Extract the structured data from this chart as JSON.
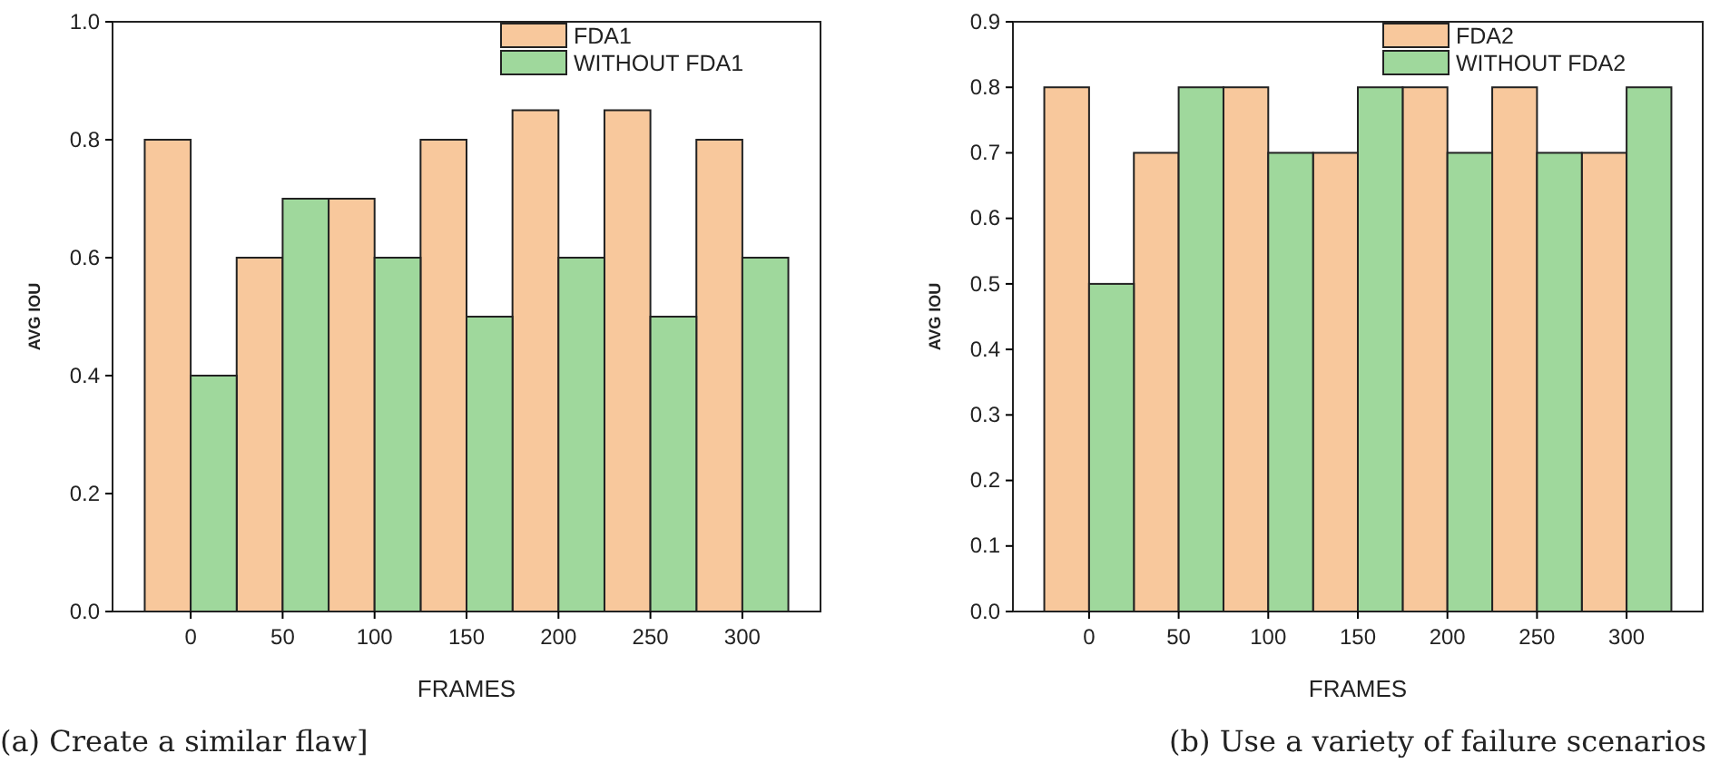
{
  "chart_data": [
    {
      "type": "bar",
      "xlabel": "FRAMES",
      "ylabel": "AVG IOU",
      "categories": [
        "0",
        "50",
        "100",
        "150",
        "200",
        "250",
        "300"
      ],
      "series": [
        {
          "name": "FDA1",
          "color": "#f8c89c",
          "values": [
            0.8,
            0.6,
            0.7,
            0.8,
            0.85,
            0.85,
            0.8
          ]
        },
        {
          "name": "WITHOUT FDA1",
          "color": "#9fd89c",
          "values": [
            0.4,
            0.7,
            0.6,
            0.5,
            0.6,
            0.5,
            0.6
          ]
        }
      ],
      "ylim": [
        0,
        1
      ],
      "yticks": [
        {
          "value": 0,
          "label": "0.0"
        },
        {
          "value": 0.2,
          "label": "0.2"
        },
        {
          "value": 0.4,
          "label": "0.4"
        },
        {
          "value": 0.6,
          "label": "0.6"
        },
        {
          "value": 0.8,
          "label": "0.8"
        },
        {
          "value": 1,
          "label": "1.0"
        }
      ],
      "grid": false,
      "legend": "top right",
      "annotations": [
        "(a) Create a similar flaw]"
      ]
    },
    {
      "type": "bar",
      "xlabel": "FRAMES",
      "ylabel": "AVG IOU",
      "categories": [
        "0",
        "50",
        "100",
        "150",
        "200",
        "250",
        "300"
      ],
      "series": [
        {
          "name": "FDA2",
          "color": "#f8c89c",
          "values": [
            0.8,
            0.7,
            0.8,
            0.7,
            0.8,
            0.8,
            0.7
          ]
        },
        {
          "name": "WITHOUT FDA2",
          "color": "#9fd89c",
          "values": [
            0.5,
            0.8,
            0.7,
            0.8,
            0.7,
            0.7,
            0.8
          ]
        }
      ],
      "ylim": [
        0,
        0.9
      ],
      "yticks": [
        {
          "value": 0,
          "label": "0.0"
        },
        {
          "value": 0.1,
          "label": "0.1"
        },
        {
          "value": 0.2,
          "label": "0.2"
        },
        {
          "value": 0.3,
          "label": "0.3"
        },
        {
          "value": 0.4,
          "label": "0.4"
        },
        {
          "value": 0.5,
          "label": "0.5"
        },
        {
          "value": 0.6,
          "label": "0.6"
        },
        {
          "value": 0.7,
          "label": "0.7"
        },
        {
          "value": 0.8,
          "label": "0.8"
        },
        {
          "value": 0.9,
          "label": "0.9"
        }
      ],
      "grid": false,
      "legend": "top right",
      "annotations": [
        "(b) Use a variety of failure scenarios"
      ]
    }
  ]
}
